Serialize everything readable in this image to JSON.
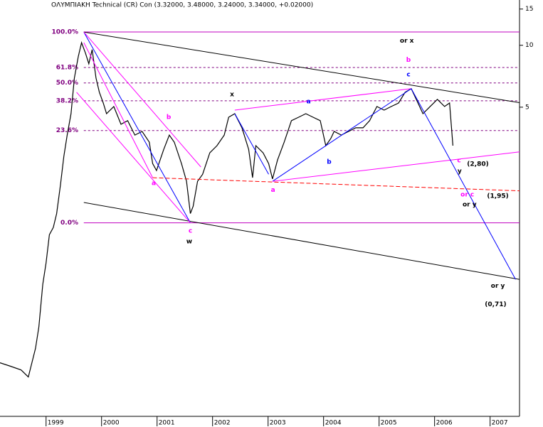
{
  "chart_data": {
    "type": "line",
    "title": "ΟΛΥΜΠΙΑΚΗ Technical (CR) Con (3.32000, 3.48000, 3.24000, 3.34000, +0.02000)",
    "log_scale": true,
    "xlim": [
      1998.17,
      2007.53
    ],
    "ylim": [
      0.157,
      16.6
    ],
    "xticks": [
      1999,
      2000,
      2001,
      2002,
      2003,
      2004,
      2005,
      2006,
      2007
    ],
    "yticks": [
      5,
      10,
      15
    ],
    "series": [
      {
        "color": "#000000",
        "x": [
          1998.17,
          1998.36,
          1998.55,
          1998.68,
          1998.81,
          1998.87,
          1998.94,
          1999.0,
          1999.06,
          1999.13,
          1999.19,
          1999.26,
          1999.32,
          1999.38,
          1999.45,
          1999.51,
          1999.58,
          1999.64,
          1999.71,
          1999.77,
          1999.83,
          1999.9,
          1999.96,
          2000.03,
          2000.09,
          2000.22,
          2000.35,
          2000.47,
          2000.6,
          2000.73,
          2000.86,
          2000.92,
          2000.99,
          2001.12,
          2001.22,
          2001.31,
          2001.44,
          2001.53,
          2001.6,
          2001.65,
          2001.73,
          2001.82,
          2001.95,
          2002.08,
          2002.21,
          2002.29,
          2002.4,
          2002.53,
          2002.65,
          2002.72,
          2002.78,
          2002.91,
          2003.01,
          2003.08,
          2003.17,
          2003.29,
          2003.42,
          2003.55,
          2003.68,
          2003.81,
          2003.94,
          2004.04,
          2004.13,
          2004.19,
          2004.32,
          2004.45,
          2004.58,
          2004.71,
          2004.83,
          2004.96,
          2005.09,
          2005.22,
          2005.35,
          2005.47,
          2005.58,
          2005.67,
          2005.79,
          2005.92,
          2006.05,
          2006.18,
          2006.27,
          2006.33
        ],
        "values": [
          0.286,
          0.275,
          0.264,
          0.244,
          0.336,
          0.427,
          0.688,
          0.873,
          1.2,
          1.3,
          1.52,
          2.1,
          2.88,
          3.66,
          4.65,
          6.93,
          8.81,
          10.3,
          9.16,
          8.13,
          9.53,
          6.93,
          5.91,
          5.24,
          4.65,
          5.04,
          4.13,
          4.3,
          3.66,
          3.81,
          3.38,
          2.66,
          2.46,
          3.12,
          3.66,
          3.38,
          2.66,
          2.18,
          1.52,
          1.65,
          2.18,
          2.36,
          3.0,
          3.25,
          3.66,
          4.47,
          4.65,
          3.97,
          3.12,
          2.27,
          3.25,
          3.0,
          2.66,
          2.24,
          2.77,
          3.38,
          4.3,
          4.47,
          4.65,
          4.47,
          4.3,
          3.25,
          3.52,
          3.81,
          3.66,
          3.81,
          3.97,
          3.97,
          4.3,
          5.04,
          4.84,
          5.04,
          5.24,
          5.91,
          6.15,
          5.46,
          4.65,
          5.04,
          5.46,
          5.04,
          5.24,
          3.25
        ]
      }
    ],
    "fib_levels": [
      {
        "label": "100.0%",
        "price": 11.6,
        "solid": true
      },
      {
        "label": "61.8%",
        "price": 7.8,
        "solid": false
      },
      {
        "label": "50.0%",
        "price": 6.56,
        "solid": false
      },
      {
        "label": "38.2%",
        "price": 5.37,
        "solid": false
      },
      {
        "label": "23.6%",
        "price": 3.85,
        "solid": false
      },
      {
        "label": "0.0%",
        "price": 1.37,
        "solid": true
      }
    ],
    "fib_start": 1999.68,
    "trend_lines": [
      {
        "color": "#000000",
        "x": [
          1999.68,
          2007.53
        ],
        "values": [
          11.6,
          5.26
        ]
      },
      {
        "color": "#000000",
        "x": [
          1999.68,
          2007.53
        ],
        "values": [
          1.72,
          0.727
        ]
      },
      {
        "color": "#0000ff",
        "x": [
          1999.68,
          2001.6
        ],
        "values": [
          11.6,
          1.37
        ]
      },
      {
        "color": "#ff00ff",
        "x": [
          1999.68,
          2001.79
        ],
        "values": [
          11.6,
          2.56
        ]
      },
      {
        "color": "#ff00ff",
        "x": [
          1999.55,
          2001.6
        ],
        "values": [
          5.91,
          1.37
        ]
      },
      {
        "color": "#ff00ff",
        "x": [
          1999.68,
          2000.92
        ],
        "values": [
          10.3,
          2.27
        ]
      },
      {
        "color": "#ff0000",
        "x": [
          2000.92,
          2007.53
        ],
        "values": [
          2.27,
          1.96
        ],
        "dashed": true
      },
      {
        "color": "#ff00ff",
        "x": [
          2002.4,
          2005.58
        ],
        "values": [
          4.84,
          6.15
        ]
      },
      {
        "color": "#0000ff",
        "x": [
          2003.08,
          2005.58
        ],
        "values": [
          2.18,
          6.15
        ]
      },
      {
        "color": "#ff00ff",
        "x": [
          2003.08,
          2007.53
        ],
        "values": [
          2.18,
          3.03
        ]
      },
      {
        "color": "#0000ff",
        "x": [
          2005.58,
          2007.46
        ],
        "values": [
          6.15,
          0.727
        ]
      },
      {
        "color": "#0000ff",
        "x": [
          2002.4,
          2003.01
        ],
        "values": [
          4.65,
          2.36
        ]
      }
    ],
    "annotations": [
      {
        "text": "or x",
        "x": 2005.5,
        "y": 10.5,
        "color": "#000000"
      },
      {
        "text": "b",
        "x": 2005.53,
        "y": 8.46,
        "color": "#ff00ff"
      },
      {
        "text": "c",
        "x": 2005.53,
        "y": 7.21,
        "color": "#0000ff"
      },
      {
        "text": "x",
        "x": 2002.35,
        "y": 5.77,
        "color": "#000000"
      },
      {
        "text": "a",
        "x": 2003.73,
        "y": 5.33,
        "color": "#0000ff"
      },
      {
        "text": "b",
        "x": 2001.21,
        "y": 4.47,
        "color": "#ff00ff"
      },
      {
        "text": "b",
        "x": 2004.1,
        "y": 2.71,
        "color": "#0000ff"
      },
      {
        "text": "a",
        "x": 2000.94,
        "y": 2.13,
        "color": "#ff00ff"
      },
      {
        "text": "a",
        "x": 2003.09,
        "y": 1.98,
        "color": "#ff00ff"
      },
      {
        "text": "c",
        "x": 2001.6,
        "y": 1.25,
        "color": "#ff00ff"
      },
      {
        "text": "w",
        "x": 2001.58,
        "y": 1.11,
        "color": "#000000"
      },
      {
        "text": "c",
        "x": 2006.44,
        "y": 2.75,
        "color": "#ff00ff"
      },
      {
        "text": "y",
        "x": 2006.45,
        "y": 2.44,
        "color": "#000000"
      },
      {
        "text": "(2,80)",
        "x": 2006.78,
        "y": 2.64,
        "color": "#000000"
      },
      {
        "text": "or c",
        "x": 2006.59,
        "y": 1.88,
        "color": "#ff00ff"
      },
      {
        "text": "or y",
        "x": 2006.63,
        "y": 1.68,
        "color": "#000000"
      },
      {
        "text": "(1,95)",
        "x": 2007.14,
        "y": 1.85,
        "color": "#000000"
      },
      {
        "text": "or y",
        "x": 2007.14,
        "y": 0.677,
        "color": "#000000"
      },
      {
        "text": "(0,71)",
        "x": 2007.1,
        "y": 0.55,
        "color": "#000000"
      }
    ]
  }
}
